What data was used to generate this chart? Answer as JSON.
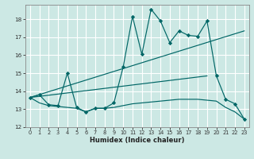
{
  "xlabel": "Humidex (Indice chaleur)",
  "bg_color": "#cce8e4",
  "line_color": "#006666",
  "grid_color": "#ffffff",
  "xlim": [
    -0.5,
    23.5
  ],
  "ylim": [
    12.0,
    18.8
  ],
  "yticks": [
    12,
    13,
    14,
    15,
    16,
    17,
    18
  ],
  "xticks": [
    0,
    1,
    2,
    3,
    4,
    5,
    6,
    7,
    8,
    9,
    10,
    11,
    12,
    13,
    14,
    15,
    16,
    17,
    18,
    19,
    20,
    21,
    22,
    23
  ],
  "series_main": {
    "x": [
      0,
      1,
      2,
      3,
      4,
      5,
      6,
      7,
      8,
      9,
      10,
      11,
      12,
      13,
      14,
      15,
      16,
      17,
      18,
      19,
      20,
      21,
      22,
      23
    ],
    "y": [
      13.65,
      13.8,
      13.25,
      13.2,
      15.0,
      13.1,
      12.85,
      13.05,
      13.05,
      13.35,
      15.35,
      18.15,
      16.05,
      18.55,
      17.9,
      16.7,
      17.35,
      17.1,
      17.05,
      17.9,
      14.85,
      13.55,
      13.3,
      12.45
    ]
  },
  "trend_upper": {
    "x": [
      0,
      23
    ],
    "y": [
      13.65,
      17.35
    ]
  },
  "trend_lower": {
    "x": [
      0,
      19
    ],
    "y": [
      13.65,
      14.85
    ]
  },
  "series_bottom": {
    "x": [
      0,
      1,
      2,
      3,
      4,
      5,
      6,
      7,
      8,
      9,
      10,
      11,
      12,
      13,
      14,
      15,
      16,
      17,
      18,
      19,
      20,
      21,
      22,
      23
    ],
    "y": [
      13.65,
      13.35,
      13.2,
      13.15,
      13.1,
      13.05,
      12.85,
      13.05,
      13.05,
      13.1,
      13.2,
      13.3,
      13.35,
      13.4,
      13.45,
      13.5,
      13.55,
      13.55,
      13.55,
      13.5,
      13.45,
      13.1,
      12.85,
      12.45
    ]
  }
}
